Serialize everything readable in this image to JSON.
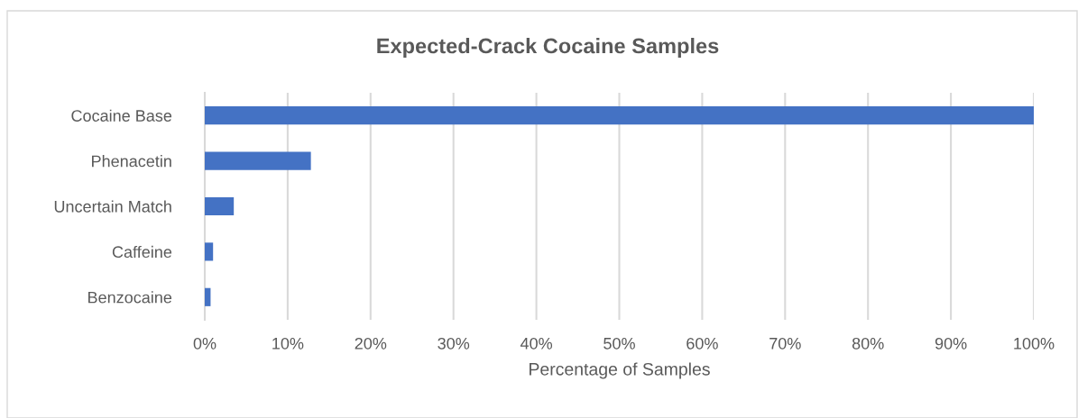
{
  "chart_data": {
    "type": "bar",
    "orientation": "horizontal",
    "title": "Expected-Crack Cocaine Samples",
    "xlabel": "Percentage of Samples",
    "categories": [
      "Cocaine Base",
      "Phenacetin",
      "Uncertain Match",
      "Caffeine",
      "Benzocaine"
    ],
    "values": [
      100,
      12.8,
      3.5,
      1.0,
      0.7
    ],
    "color": "#4472c4",
    "xlim": [
      0,
      100
    ],
    "xticks": [
      {
        "value": 0,
        "label": "0%"
      },
      {
        "value": 10,
        "label": "10%"
      },
      {
        "value": 20,
        "label": "20%"
      },
      {
        "value": 30,
        "label": "30%"
      },
      {
        "value": 40,
        "label": "40%"
      },
      {
        "value": 50,
        "label": "50%"
      },
      {
        "value": 60,
        "label": "60%"
      },
      {
        "value": 70,
        "label": "70%"
      },
      {
        "value": 80,
        "label": "80%"
      },
      {
        "value": 90,
        "label": "90%"
      },
      {
        "value": 100,
        "label": "100%"
      }
    ],
    "grid": "x"
  }
}
